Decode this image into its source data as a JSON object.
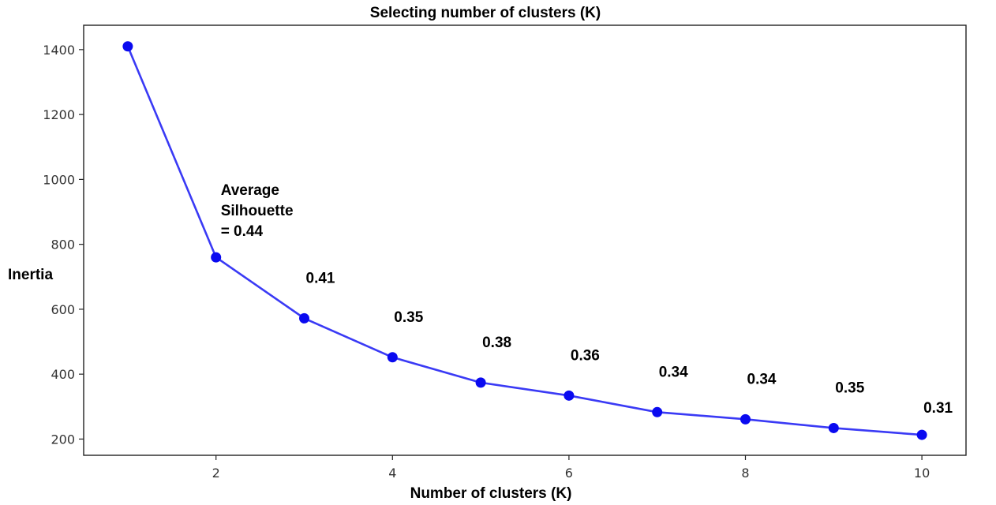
{
  "chart_data": {
    "type": "line",
    "title": "Selecting number  of clusters (K)",
    "xlabel": "Number of clusters (K)",
    "ylabel": "Inertia",
    "x": [
      1,
      2,
      3,
      4,
      5,
      6,
      7,
      8,
      9,
      10
    ],
    "series": [
      {
        "values": [
          1410,
          760,
          572,
          452,
          374,
          334,
          283,
          261,
          234,
          213
        ]
      }
    ],
    "xlim": [
      0.5,
      10.5
    ],
    "ylim": [
      150,
      1475
    ],
    "xticks": [
      "2",
      "4",
      "6",
      "8",
      "10"
    ],
    "yticks": [
      "200",
      "400",
      "600",
      "800",
      "1000",
      "1200",
      "1400"
    ],
    "grid": false,
    "line_color": "#3a3af5",
    "marker_color": "#0a0af0",
    "annotations": [
      {
        "x": 2,
        "lines": [
          "Average",
          "Silhouette",
          "= 0.44"
        ]
      },
      {
        "x": 3,
        "lines": [
          "0.41"
        ]
      },
      {
        "x": 4,
        "lines": [
          "0.35"
        ]
      },
      {
        "x": 5,
        "lines": [
          "0.38"
        ]
      },
      {
        "x": 6,
        "lines": [
          "0.36"
        ]
      },
      {
        "x": 7,
        "lines": [
          "0.34"
        ]
      },
      {
        "x": 8,
        "lines": [
          "0.34"
        ]
      },
      {
        "x": 9,
        "lines": [
          "0.35"
        ]
      },
      {
        "x": 10,
        "lines": [
          "0.31"
        ]
      }
    ]
  }
}
